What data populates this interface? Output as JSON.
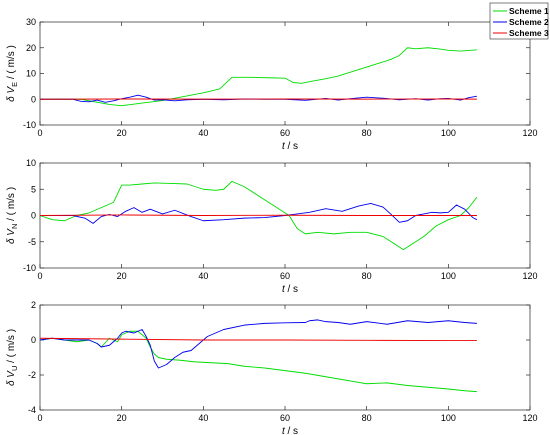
{
  "chart_data": [
    {
      "type": "line",
      "ylabel": {
        "main": "δ V",
        "sub": "E",
        "unit": " / ( m/s )"
      },
      "xlabel": {
        "main": "t",
        "unit": "  / s"
      },
      "xlim": [
        0,
        120
      ],
      "ylim": [
        -10,
        30
      ],
      "xticks": [
        0,
        20,
        40,
        60,
        80,
        100,
        120
      ],
      "yticks": [
        -10,
        0,
        10,
        20,
        30
      ],
      "grid": false,
      "legend": {
        "position": "top-right",
        "entries": [
          "Scheme 1",
          "Scheme 2",
          "Scheme 3"
        ]
      },
      "series": [
        {
          "name": "Scheme 1",
          "color": "#00dd00",
          "x": [
            0,
            10,
            17,
            20,
            25,
            30,
            35,
            40,
            44,
            47,
            52,
            57,
            60,
            62,
            64,
            66,
            70,
            73,
            76,
            80,
            83,
            86,
            88,
            90,
            92,
            95,
            98,
            100,
            103,
            107
          ],
          "y": [
            0,
            0,
            -2,
            -2.5,
            -1.5,
            -0.5,
            1,
            2.5,
            4,
            8.5,
            8.5,
            8.3,
            8.2,
            6.5,
            6.2,
            6.8,
            8,
            9,
            10.5,
            12.5,
            14,
            15.5,
            17,
            20,
            19.6,
            20,
            19.5,
            19,
            18.7,
            19.2
          ]
        },
        {
          "name": "Scheme 2",
          "color": "#0000ee",
          "x": [
            0,
            8,
            10,
            12,
            14,
            16,
            18,
            20,
            22,
            24,
            26,
            28,
            30,
            33,
            36,
            40,
            45,
            50,
            55,
            60,
            65,
            70,
            73,
            76,
            80,
            84,
            88,
            92,
            95,
            98,
            100,
            103,
            105,
            107
          ],
          "y": [
            0,
            0,
            -0.8,
            -1,
            -0.3,
            -1.2,
            -0.6,
            0.2,
            0.8,
            1.6,
            0.8,
            -0.3,
            -0.2,
            -0.6,
            -0.2,
            0,
            -0.2,
            0.1,
            0,
            0,
            -0.4,
            0.3,
            -0.3,
            0.2,
            0.8,
            0.4,
            -0.2,
            0.2,
            -0.3,
            0.2,
            0.3,
            -0.3,
            0.6,
            1.2
          ]
        },
        {
          "name": "Scheme 3",
          "color": "#ee0000",
          "x": [
            0,
            20,
            40,
            60,
            80,
            100,
            107
          ],
          "y": [
            0,
            0.1,
            0.05,
            0.1,
            0.05,
            0.1,
            0.05
          ]
        }
      ]
    },
    {
      "type": "line",
      "ylabel": {
        "main": "δ V",
        "sub": "N",
        "unit": " / ( m/s )"
      },
      "xlabel": {
        "main": "t",
        "unit": "  / s"
      },
      "xlim": [
        0,
        120
      ],
      "ylim": [
        -10,
        10
      ],
      "xticks": [
        0,
        20,
        40,
        60,
        80,
        100,
        120
      ],
      "yticks": [
        -10,
        -5,
        0,
        5,
        10
      ],
      "grid": false,
      "series": [
        {
          "name": "Scheme 1",
          "color": "#00dd00",
          "x": [
            0,
            3,
            6,
            9,
            12,
            15,
            18,
            20,
            22,
            25,
            28,
            32,
            36,
            40,
            43,
            45,
            47,
            50,
            55,
            58,
            61,
            63,
            65,
            68,
            72,
            76,
            80,
            84,
            87,
            89,
            91,
            94,
            97,
            100,
            103,
            105,
            107
          ],
          "y": [
            0,
            -0.8,
            -1,
            0,
            0.5,
            1.5,
            2.5,
            5.8,
            5.8,
            6,
            6.2,
            6.1,
            6,
            5,
            4.8,
            5,
            6.5,
            5.5,
            3,
            1.5,
            0,
            -2.5,
            -3.5,
            -3.2,
            -3.5,
            -3.2,
            -3.2,
            -4,
            -5.5,
            -6.5,
            -5.5,
            -4,
            -2,
            -0.8,
            0,
            1.5,
            3.5
          ]
        },
        {
          "name": "Scheme 2",
          "color": "#0000ee",
          "x": [
            0,
            8,
            11,
            13,
            15,
            17,
            19,
            21,
            23,
            25,
            27,
            30,
            33,
            37,
            40,
            45,
            50,
            55,
            60,
            63,
            66,
            70,
            74,
            78,
            81,
            84,
            86,
            88,
            90,
            92,
            94,
            96,
            98,
            100,
            102,
            104,
            106,
            107
          ],
          "y": [
            0,
            0,
            -0.5,
            -1.5,
            -0.2,
            0.2,
            -0.2,
            0.8,
            1.5,
            0.6,
            1.2,
            0.3,
            1,
            -0.2,
            -1,
            -0.8,
            -0.5,
            -0.4,
            0,
            0.3,
            0.6,
            1.3,
            0.8,
            1.8,
            2.3,
            1.6,
            0.2,
            -1.3,
            -1,
            0,
            0.3,
            0.6,
            0.5,
            0.6,
            2,
            1.2,
            -0.4,
            -0.8
          ]
        },
        {
          "name": "Scheme 3",
          "color": "#ee0000",
          "x": [
            0,
            20,
            40,
            60,
            80,
            100,
            107
          ],
          "y": [
            0,
            0.1,
            0,
            0.05,
            0,
            0,
            0
          ]
        }
      ]
    },
    {
      "type": "line",
      "ylabel": {
        "main": "δ V",
        "sub": "U",
        "unit": " / ( m/s )"
      },
      "xlabel": {
        "main": "t",
        "unit": "  / s"
      },
      "xlim": [
        0,
        120
      ],
      "ylim": [
        -4,
        2
      ],
      "xticks": [
        0,
        20,
        40,
        60,
        80,
        100,
        120
      ],
      "yticks": [
        -4,
        -2,
        0,
        2
      ],
      "grid": false,
      "series": [
        {
          "name": "Scheme 1",
          "color": "#00dd00",
          "x": [
            0,
            3,
            6,
            9,
            12,
            14,
            15,
            17,
            19,
            20,
            22,
            24,
            26,
            27,
            28,
            29,
            31,
            34,
            38,
            42,
            46,
            50,
            55,
            60,
            65,
            70,
            75,
            80,
            85,
            90,
            95,
            100,
            104,
            107
          ],
          "y": [
            0,
            0.1,
            0,
            -0.1,
            0,
            -0.2,
            -0.4,
            0.1,
            -0.1,
            0.3,
            0.5,
            0.5,
            0.1,
            -0.4,
            -0.8,
            -1,
            -1.1,
            -1.15,
            -1.25,
            -1.3,
            -1.35,
            -1.5,
            -1.6,
            -1.75,
            -1.9,
            -2.1,
            -2.3,
            -2.5,
            -2.45,
            -2.6,
            -2.7,
            -2.8,
            -2.9,
            -2.95
          ]
        },
        {
          "name": "Scheme 2",
          "color": "#0000ee",
          "x": [
            0,
            3,
            6,
            9,
            12,
            14,
            15,
            17,
            19,
            20,
            21,
            23,
            25,
            26,
            27,
            28,
            29,
            31,
            33,
            35,
            37,
            39,
            41,
            45,
            50,
            55,
            60,
            65,
            66,
            68,
            70,
            73,
            76,
            80,
            85,
            90,
            95,
            100,
            104,
            107
          ],
          "y": [
            0,
            0.1,
            0,
            0,
            0,
            -0.2,
            -0.4,
            -0.3,
            0.1,
            0.4,
            0.5,
            0.4,
            0.6,
            0.2,
            -0.3,
            -1.2,
            -1.6,
            -1.4,
            -1,
            -0.7,
            -0.6,
            -0.2,
            0.2,
            0.6,
            0.85,
            0.95,
            0.98,
            1,
            1.1,
            1.15,
            1.05,
            1,
            0.9,
            1.05,
            0.9,
            1.1,
            1,
            1.1,
            1,
            0.95
          ]
        },
        {
          "name": "Scheme 3",
          "color": "#ee0000",
          "x": [
            0,
            20,
            40,
            60,
            80,
            100,
            107
          ],
          "y": [
            0.1,
            0.05,
            0,
            0,
            -0.02,
            -0.03,
            -0.03
          ]
        }
      ]
    }
  ]
}
